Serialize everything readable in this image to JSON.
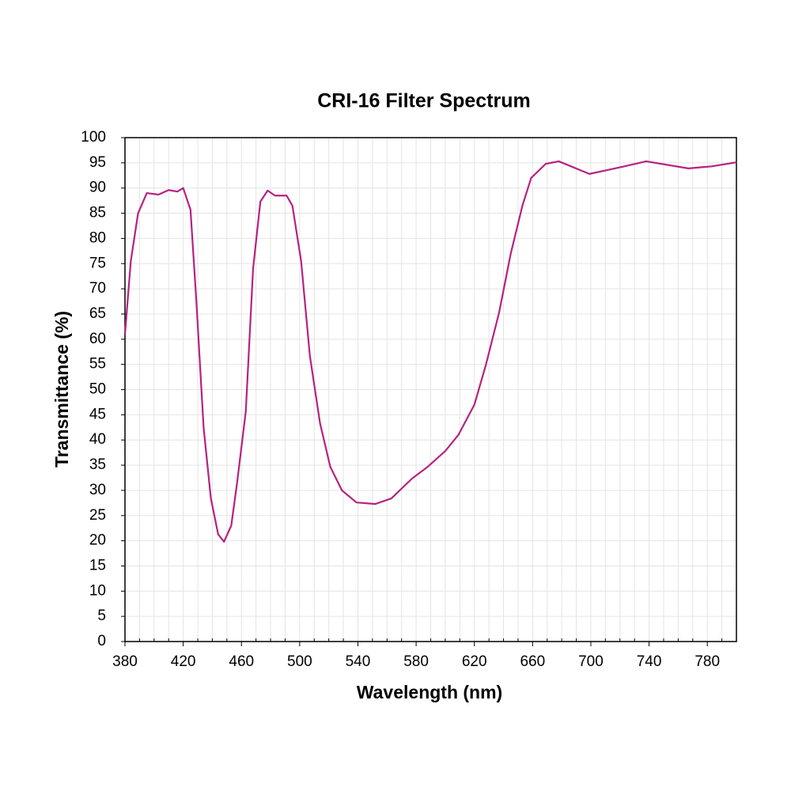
{
  "chart_data": {
    "type": "line",
    "title": "CRI-16 Filter Spectrum",
    "x_label": "Wavelength (nm)",
    "y_label": "Transmittance (%)",
    "x": [
      380,
      384,
      389,
      395,
      403,
      410,
      416,
      420,
      425,
      429,
      434,
      439,
      444,
      448,
      453,
      457,
      463,
      468,
      473,
      478,
      483,
      491,
      495,
      501,
      507,
      514,
      521,
      529,
      539,
      552,
      563,
      577,
      588,
      600,
      609,
      620,
      628,
      637,
      645,
      653,
      659,
      669,
      678,
      699,
      723,
      738,
      767,
      783,
      800
    ],
    "series": [
      {
        "name": "CRI-16",
        "color": "#b5237f",
        "values": [
          61,
          75.5,
          85,
          89,
          88.7,
          89.6,
          89.3,
          90,
          85.7,
          67.7,
          42.5,
          28.4,
          21.3,
          19.8,
          23,
          31.5,
          45.7,
          74,
          87.3,
          89.5,
          88.5,
          88.5,
          86.5,
          75.5,
          56.7,
          43.3,
          34.7,
          30,
          27.6,
          27.3,
          28.4,
          32.3,
          34.7,
          37.8,
          41,
          47,
          55,
          65.3,
          77,
          86.5,
          92,
          94.8,
          95.3,
          92.8,
          94.3,
          95.3,
          93.9,
          94.3,
          95.1
        ]
      }
    ],
    "xlim": [
      380,
      800
    ],
    "xticks": [
      380,
      420,
      460,
      500,
      540,
      580,
      620,
      660,
      700,
      740,
      780
    ],
    "xgrid": [
      390,
      400,
      410,
      430,
      440,
      450,
      470,
      480,
      490,
      510,
      520,
      530,
      550,
      560,
      570,
      590,
      600,
      610,
      630,
      640,
      650,
      670,
      680,
      690,
      710,
      720,
      730,
      750,
      760,
      770,
      790
    ],
    "ylim": [
      0,
      100
    ],
    "yticks": [
      0,
      5,
      10,
      15,
      20,
      25,
      30,
      35,
      40,
      45,
      50,
      55,
      60,
      65,
      70,
      75,
      80,
      85,
      90,
      95,
      100
    ],
    "grid": true
  }
}
